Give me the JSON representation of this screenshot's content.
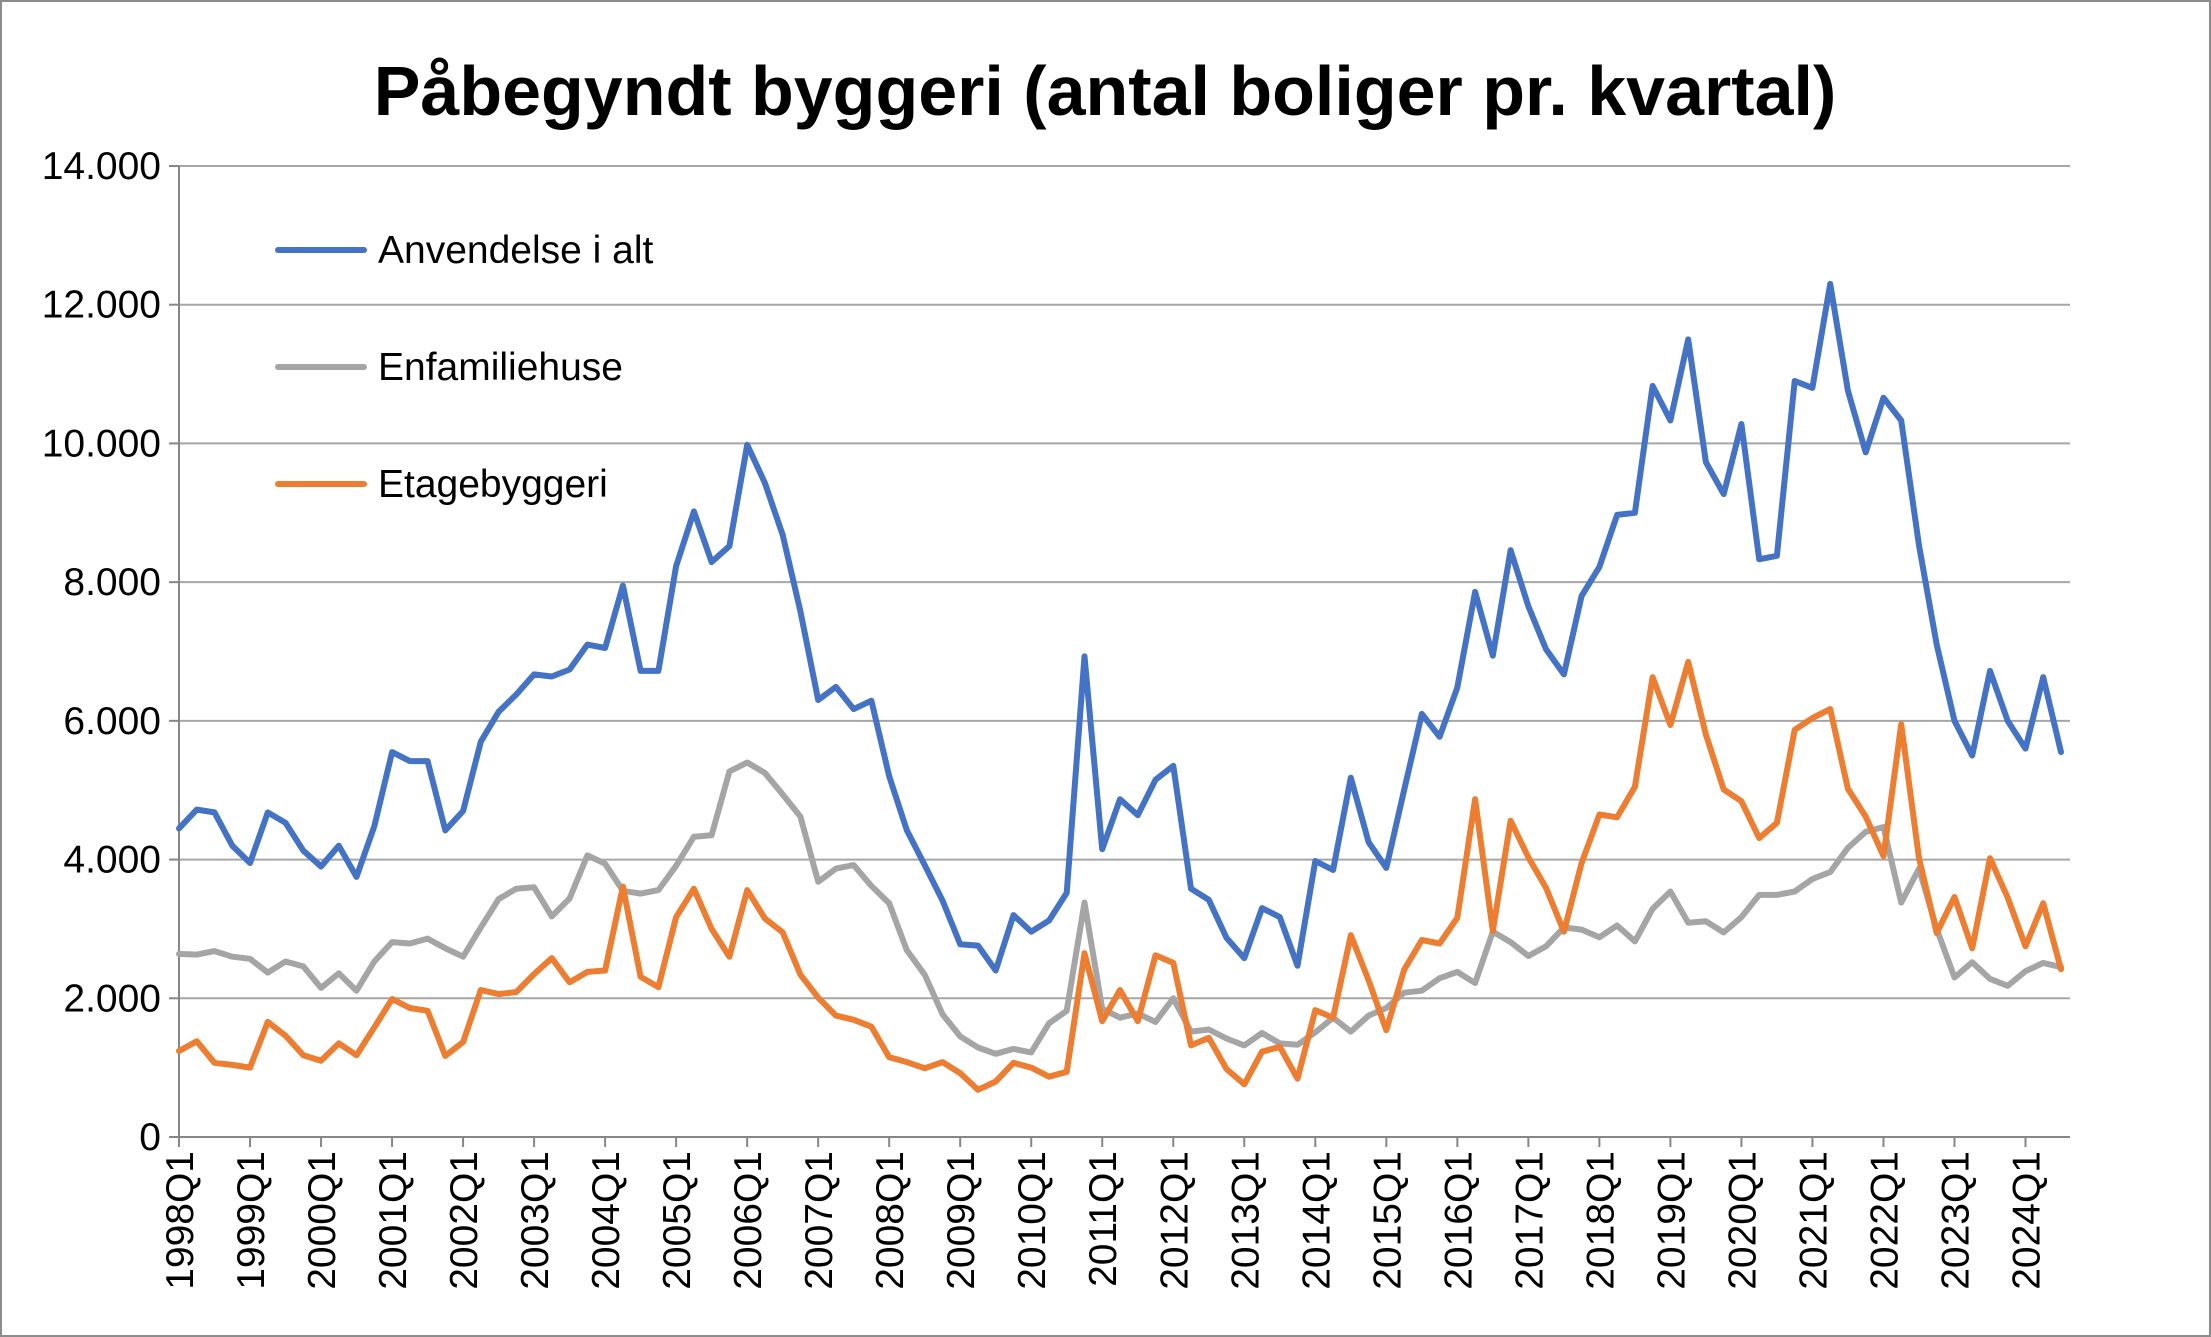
{
  "chart_data": {
    "type": "line",
    "title": "Påbegyndt byggeri (antal boliger pr. kvartal)",
    "xlabel": "",
    "ylabel": "",
    "ylim": [
      0,
      14000
    ],
    "yticks": [
      "0",
      "2.000",
      "4.000",
      "6.000",
      "8.000",
      "10.000",
      "12.000",
      "14.000"
    ],
    "ytick_values": [
      0,
      2000,
      4000,
      6000,
      8000,
      10000,
      12000,
      14000
    ],
    "grid": true,
    "legend_position": "top-left",
    "categories": [
      "1998Q1",
      "1998Q2",
      "1998Q3",
      "1998Q4",
      "1999Q1",
      "1999Q2",
      "1999Q3",
      "1999Q4",
      "2000Q1",
      "2000Q2",
      "2000Q3",
      "2000Q4",
      "2001Q1",
      "2001Q2",
      "2001Q3",
      "2001Q4",
      "2002Q1",
      "2002Q2",
      "2002Q3",
      "2002Q4",
      "2003Q1",
      "2003Q2",
      "2003Q3",
      "2003Q4",
      "2004Q1",
      "2004Q2",
      "2004Q3",
      "2004Q4",
      "2005Q1",
      "2005Q2",
      "2005Q3",
      "2005Q4",
      "2006Q1",
      "2006Q2",
      "2006Q3",
      "2006Q4",
      "2007Q1",
      "2007Q2",
      "2007Q3",
      "2007Q4",
      "2008Q1",
      "2008Q2",
      "2008Q3",
      "2008Q4",
      "2009Q1",
      "2009Q2",
      "2009Q3",
      "2009Q4",
      "2010Q1",
      "2010Q2",
      "2010Q3",
      "2010Q4",
      "2011Q1",
      "2011Q2",
      "2011Q3",
      "2011Q4",
      "2012Q1",
      "2012Q2",
      "2012Q3",
      "2012Q4",
      "2013Q1",
      "2013Q2",
      "2013Q3",
      "2013Q4",
      "2014Q1",
      "2014Q2",
      "2014Q3",
      "2014Q4",
      "2015Q1",
      "2015Q2",
      "2015Q3",
      "2015Q4",
      "2016Q1",
      "2016Q2",
      "2016Q3",
      "2016Q4",
      "2017Q1",
      "2017Q2",
      "2017Q3",
      "2017Q4",
      "2018Q1",
      "2018Q2",
      "2018Q3",
      "2018Q4",
      "2019Q1",
      "2019Q2",
      "2019Q3",
      "2019Q4",
      "2020Q1",
      "2020Q2",
      "2020Q3",
      "2020Q4",
      "2021Q1",
      "2021Q2",
      "2021Q3",
      "2021Q4",
      "2022Q1",
      "2022Q2",
      "2022Q3",
      "2022Q4",
      "2023Q1",
      "2023Q2",
      "2023Q3",
      "2023Q4",
      "2024Q1",
      "2024Q2",
      "2024Q3"
    ],
    "series": [
      {
        "name": "Anvendelse i alt",
        "color": "#4472c4",
        "values": [
          4450,
          4720,
          4680,
          4200,
          3950,
          4680,
          4530,
          4130,
          3900,
          4200,
          3750,
          4480,
          5550,
          5420,
          5420,
          4420,
          4700,
          5700,
          6130,
          6380,
          6670,
          6640,
          6740,
          7100,
          7050,
          7950,
          6720,
          6720,
          8230,
          9020,
          8290,
          8520,
          9980,
          9430,
          8680,
          7580,
          6300,
          6490,
          6170,
          6290,
          5200,
          4420,
          3920,
          3410,
          2780,
          2760,
          2400,
          3200,
          2960,
          3120,
          3520,
          6930,
          4150,
          4870,
          4640,
          5150,
          5350,
          3580,
          3420,
          2870,
          2580,
          3300,
          3170,
          2470,
          3980,
          3850,
          5180,
          4250,
          3880,
          5000,
          6100,
          5770,
          6480,
          7860,
          6940,
          8460,
          7650,
          7030,
          6670,
          7800,
          8220,
          8970,
          9000,
          10830,
          10330,
          11500,
          9730,
          9270,
          10280,
          8330,
          8380,
          10900,
          10800,
          12300,
          10760,
          9870,
          10660,
          10330,
          8530,
          7100,
          6000,
          5500,
          6720,
          6000,
          5600,
          6630,
          5550
        ]
      },
      {
        "name": "Enfamiliehuse",
        "color": "#a5a5a5",
        "values": [
          2640,
          2630,
          2680,
          2600,
          2570,
          2370,
          2530,
          2460,
          2150,
          2360,
          2110,
          2530,
          2810,
          2790,
          2860,
          2720,
          2600,
          3020,
          3430,
          3580,
          3600,
          3180,
          3440,
          4060,
          3940,
          3550,
          3510,
          3560,
          3910,
          4330,
          4350,
          5270,
          5400,
          5250,
          4940,
          4620,
          3680,
          3870,
          3920,
          3620,
          3370,
          2690,
          2340,
          1770,
          1450,
          1290,
          1200,
          1270,
          1220,
          1640,
          1820,
          3380,
          1850,
          1720,
          1780,
          1660,
          2000,
          1520,
          1550,
          1420,
          1320,
          1500,
          1350,
          1330,
          1510,
          1720,
          1520,
          1750,
          1860,
          2080,
          2110,
          2290,
          2380,
          2220,
          2960,
          2810,
          2610,
          2750,
          3020,
          2990,
          2880,
          3050,
          2820,
          3290,
          3540,
          3090,
          3110,
          2950,
          3170,
          3490,
          3490,
          3540,
          3720,
          3820,
          4170,
          4400,
          4470,
          3380,
          3870,
          3000,
          2300,
          2520,
          2280,
          2180,
          2390,
          2510,
          2450
        ]
      },
      {
        "name": "Etagebyggeri",
        "color": "#ed7d31",
        "values": [
          1240,
          1380,
          1070,
          1040,
          1000,
          1660,
          1460,
          1180,
          1100,
          1350,
          1180,
          1580,
          1990,
          1860,
          1820,
          1170,
          1370,
          2120,
          2060,
          2090,
          2350,
          2580,
          2230,
          2380,
          2400,
          3610,
          2310,
          2160,
          3170,
          3580,
          3000,
          2600,
          3560,
          3150,
          2950,
          2340,
          2010,
          1750,
          1690,
          1590,
          1150,
          1080,
          990,
          1080,
          920,
          680,
          800,
          1070,
          1000,
          870,
          940,
          2650,
          1670,
          2120,
          1670,
          2620,
          2510,
          1320,
          1430,
          980,
          760,
          1230,
          1300,
          840,
          1830,
          1720,
          2910,
          2260,
          1540,
          2410,
          2840,
          2790,
          3160,
          4870,
          2970,
          4560,
          4030,
          3590,
          2960,
          3950,
          4650,
          4610,
          5050,
          6630,
          5940,
          6850,
          5800,
          5010,
          4840,
          4310,
          4530,
          5870,
          6040,
          6170,
          5020,
          4620,
          4050,
          5950,
          4020,
          2940,
          3460,
          2720,
          4020,
          3450,
          2750,
          3370,
          2420
        ]
      }
    ]
  }
}
